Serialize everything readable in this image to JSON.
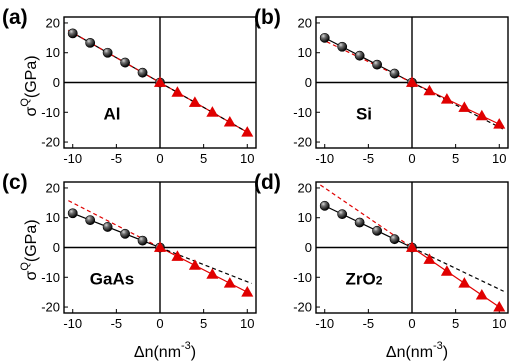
{
  "figure": {
    "ylabel_symbol": "σ",
    "ylabel_superscript": "Q",
    "ylabel_unit": "(GPa)",
    "xlabel_prefix": "Δn(nm",
    "xlabel_superscript": "-3",
    "xlabel_suffix": ")"
  },
  "colors": {
    "negative_series": "#000000",
    "positive_series": "#e00000",
    "fit_line_black": "#000000",
    "fit_line_red": "#e00000"
  },
  "chart_data": [
    {
      "type": "scatter",
      "panel": "(a)",
      "material": "Al",
      "xlabel": "",
      "ylabel": "σQ(GPa)",
      "xlim": [
        -11,
        11
      ],
      "ylim": [
        -22,
        22
      ],
      "xticks": [
        -10,
        -5,
        0,
        5,
        10
      ],
      "yticks": [
        20,
        10,
        0,
        -10,
        -20
      ],
      "series": [
        {
          "marker": "sphere",
          "color": "#000000",
          "x": [
            -10,
            -8,
            -6,
            -4,
            -2,
            0
          ],
          "y": [
            16.5,
            13.3,
            10.0,
            6.7,
            3.3,
            0
          ]
        },
        {
          "marker": "triangle",
          "color": "#e00000",
          "x": [
            0,
            2,
            4,
            6,
            8,
            10
          ],
          "y": [
            0,
            -3.3,
            -6.7,
            -10.0,
            -13.3,
            -16.7
          ]
        }
      ],
      "fit_lines": [
        {
          "color": "#000000",
          "dashed": false,
          "slope": -1.67,
          "x": [
            -10.5,
            0
          ]
        },
        {
          "color": "#e00000",
          "dashed": false,
          "slope": -1.67,
          "x": [
            0,
            10.5
          ]
        },
        {
          "color": "#e00000",
          "dashed": true,
          "slope": -1.67,
          "x": [
            -10.5,
            0
          ]
        },
        {
          "color": "#000000",
          "dashed": true,
          "slope": -1.67,
          "x": [
            0,
            10.5
          ]
        }
      ]
    },
    {
      "type": "scatter",
      "panel": "(b)",
      "material": "Si",
      "xlabel": "",
      "ylabel": "",
      "xlim": [
        -11,
        11
      ],
      "ylim": [
        -22,
        22
      ],
      "xticks": [
        -10,
        -5,
        0,
        5,
        10
      ],
      "yticks": [
        20,
        10,
        0,
        -10,
        -20
      ],
      "series": [
        {
          "marker": "sphere",
          "color": "#000000",
          "x": [
            -10,
            -8,
            -6,
            -4,
            -2,
            0
          ],
          "y": [
            15.0,
            12.0,
            9.0,
            6.0,
            3.0,
            0
          ]
        },
        {
          "marker": "triangle",
          "color": "#e00000",
          "x": [
            0,
            2,
            4,
            6,
            8,
            10
          ],
          "y": [
            0,
            -2.8,
            -5.6,
            -8.4,
            -11.2,
            -14.0
          ]
        }
      ],
      "fit_lines": [
        {
          "color": "#000000",
          "dashed": false,
          "slope": -1.5,
          "x": [
            -10.5,
            0
          ]
        },
        {
          "color": "#e00000",
          "dashed": false,
          "slope": -1.4,
          "x": [
            0,
            10.5
          ]
        },
        {
          "color": "#e00000",
          "dashed": true,
          "slope": -1.4,
          "x": [
            -10.5,
            0
          ]
        },
        {
          "color": "#000000",
          "dashed": true,
          "slope": -1.5,
          "x": [
            0,
            10.5
          ]
        }
      ]
    },
    {
      "type": "scatter",
      "panel": "(c)",
      "material": "GaAs",
      "xlabel": "Δn(nm-3)",
      "ylabel": "σQ(GPa)",
      "xlim": [
        -11,
        11
      ],
      "ylim": [
        -22,
        22
      ],
      "xticks": [
        -10,
        -5,
        0,
        5,
        10
      ],
      "yticks": [
        20,
        10,
        0,
        -10,
        -20
      ],
      "series": [
        {
          "marker": "sphere",
          "color": "#000000",
          "x": [
            -10,
            -8,
            -6,
            -4,
            -2,
            0
          ],
          "y": [
            11.5,
            9.2,
            6.9,
            4.6,
            2.3,
            0
          ]
        },
        {
          "marker": "triangle",
          "color": "#e00000",
          "x": [
            0,
            2,
            4,
            6,
            8,
            10
          ],
          "y": [
            0,
            -3.0,
            -6.0,
            -9.0,
            -12.0,
            -15.0
          ]
        }
      ],
      "fit_lines": [
        {
          "color": "#000000",
          "dashed": false,
          "slope": -1.15,
          "x": [
            -10.5,
            0
          ]
        },
        {
          "color": "#e00000",
          "dashed": false,
          "slope": -1.5,
          "x": [
            0,
            10.5
          ]
        },
        {
          "color": "#e00000",
          "dashed": true,
          "slope": -1.5,
          "x": [
            -10.5,
            0
          ]
        },
        {
          "color": "#000000",
          "dashed": true,
          "slope": -1.15,
          "x": [
            0,
            10.5
          ]
        }
      ]
    },
    {
      "type": "scatter",
      "panel": "(d)",
      "material": "ZrO2",
      "xlabel": "Δn(nm-3)",
      "ylabel": "",
      "xlim": [
        -11,
        11
      ],
      "ylim": [
        -22,
        22
      ],
      "xticks": [
        -10,
        -5,
        0,
        5,
        10
      ],
      "yticks": [
        20,
        10,
        0,
        -10,
        -20
      ],
      "series": [
        {
          "marker": "sphere",
          "color": "#000000",
          "x": [
            -10,
            -8,
            -6,
            -4,
            -2,
            0
          ],
          "y": [
            14.0,
            11.2,
            8.4,
            5.6,
            2.8,
            0
          ]
        },
        {
          "marker": "triangle",
          "color": "#e00000",
          "x": [
            0,
            2,
            4,
            6,
            8,
            10
          ],
          "y": [
            0,
            -4.0,
            -8.0,
            -12.0,
            -16.0,
            -20.0
          ]
        }
      ],
      "fit_lines": [
        {
          "color": "#000000",
          "dashed": false,
          "slope": -1.4,
          "x": [
            -10.5,
            0
          ]
        },
        {
          "color": "#e00000",
          "dashed": false,
          "slope": -2.0,
          "x": [
            0,
            10.5
          ]
        },
        {
          "color": "#e00000",
          "dashed": true,
          "slope": -2.0,
          "x": [
            -10.5,
            0
          ]
        },
        {
          "color": "#000000",
          "dashed": true,
          "slope": -1.4,
          "x": [
            0,
            10.5
          ]
        }
      ]
    }
  ]
}
